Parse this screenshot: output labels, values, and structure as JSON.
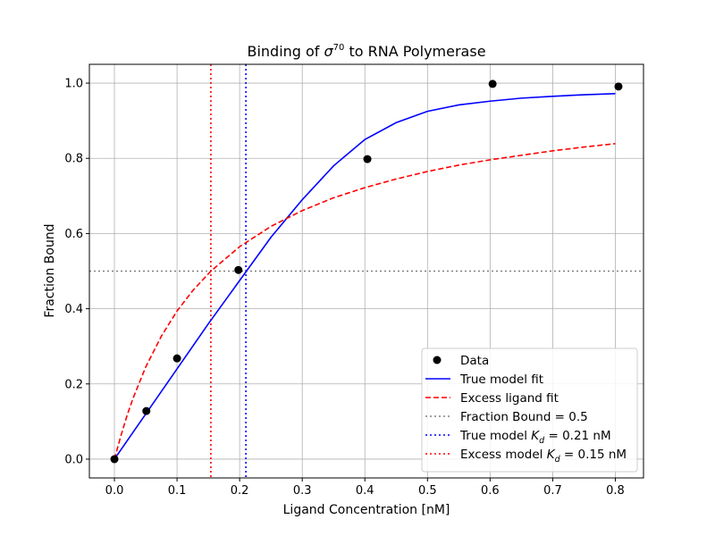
{
  "chart_data": {
    "type": "line",
    "title": "Binding of σ⁷⁰ to RNA Polymerase",
    "title_parts": {
      "pre": "Binding of ",
      "sym": "σ",
      "sup": "70",
      "post": " to RNA Polymerase"
    },
    "xlabel": "Ligand Concentration [nM]",
    "ylabel": "Fraction Bound",
    "xlim": [
      -0.04,
      0.845
    ],
    "ylim": [
      -0.05,
      1.05
    ],
    "xticks": [
      0.0,
      0.1,
      0.2,
      0.3,
      0.4,
      0.5,
      0.6,
      0.7,
      0.8
    ],
    "xtick_labels": [
      "0.0",
      "0.1",
      "0.2",
      "0.3",
      "0.4",
      "0.5",
      "0.6",
      "0.7",
      "0.8"
    ],
    "yticks": [
      0.0,
      0.2,
      0.4,
      0.6,
      0.8,
      1.0
    ],
    "ytick_labels": [
      "0.0",
      "0.2",
      "0.4",
      "0.6",
      "0.8",
      "1.0"
    ],
    "grid": true,
    "legend_position": "lower right",
    "series": [
      {
        "name": "Data",
        "kind": "scatter",
        "color": "#000000",
        "x": [
          0.0,
          0.051,
          0.1,
          0.198,
          0.404,
          0.604,
          0.805
        ],
        "y": [
          0.0,
          0.128,
          0.268,
          0.503,
          0.798,
          0.998,
          0.991
        ]
      },
      {
        "name": "True model fit",
        "kind": "line",
        "color": "#0000ff",
        "dash": "solid",
        "x": [
          0.0,
          0.05,
          0.1,
          0.15,
          0.2,
          0.25,
          0.3,
          0.35,
          0.4,
          0.45,
          0.5,
          0.55,
          0.6,
          0.65,
          0.7,
          0.75,
          0.8
        ],
        "y": [
          0.0,
          0.12,
          0.24,
          0.36,
          0.475,
          0.59,
          0.69,
          0.78,
          0.85,
          0.895,
          0.925,
          0.942,
          0.952,
          0.96,
          0.965,
          0.969,
          0.972
        ]
      },
      {
        "name": "Excess ligand fit",
        "kind": "line",
        "color": "#ff0000",
        "dash": "dashed",
        "x": [
          0.0,
          0.005,
          0.01,
          0.02,
          0.03,
          0.05,
          0.075,
          0.1,
          0.125,
          0.154,
          0.2,
          0.25,
          0.3,
          0.35,
          0.4,
          0.45,
          0.5,
          0.55,
          0.6,
          0.65,
          0.7,
          0.75,
          0.8
        ],
        "y": [
          0.0,
          0.03,
          0.06,
          0.115,
          0.163,
          0.245,
          0.327,
          0.394,
          0.448,
          0.5,
          0.565,
          0.619,
          0.661,
          0.695,
          0.722,
          0.745,
          0.765,
          0.782,
          0.796,
          0.808,
          0.82,
          0.83,
          0.839
        ]
      }
    ],
    "reference_lines": [
      {
        "name": "Fraction Bound = 0.5",
        "orientation": "horizontal",
        "value": 0.5,
        "color": "#808080",
        "dash": "dotted"
      },
      {
        "name_pre": "True model ",
        "name_var": "K",
        "name_sub": "d",
        "name_post": " = 0.21 nM",
        "orientation": "vertical",
        "value": 0.21,
        "color": "#0000ff",
        "dash": "dotted"
      },
      {
        "name_pre": "Excess model ",
        "name_var": "K",
        "name_sub": "d",
        "name_post": " = 0.15 nM",
        "orientation": "vertical",
        "value": 0.154,
        "color": "#ff0000",
        "dash": "dotted"
      }
    ]
  }
}
